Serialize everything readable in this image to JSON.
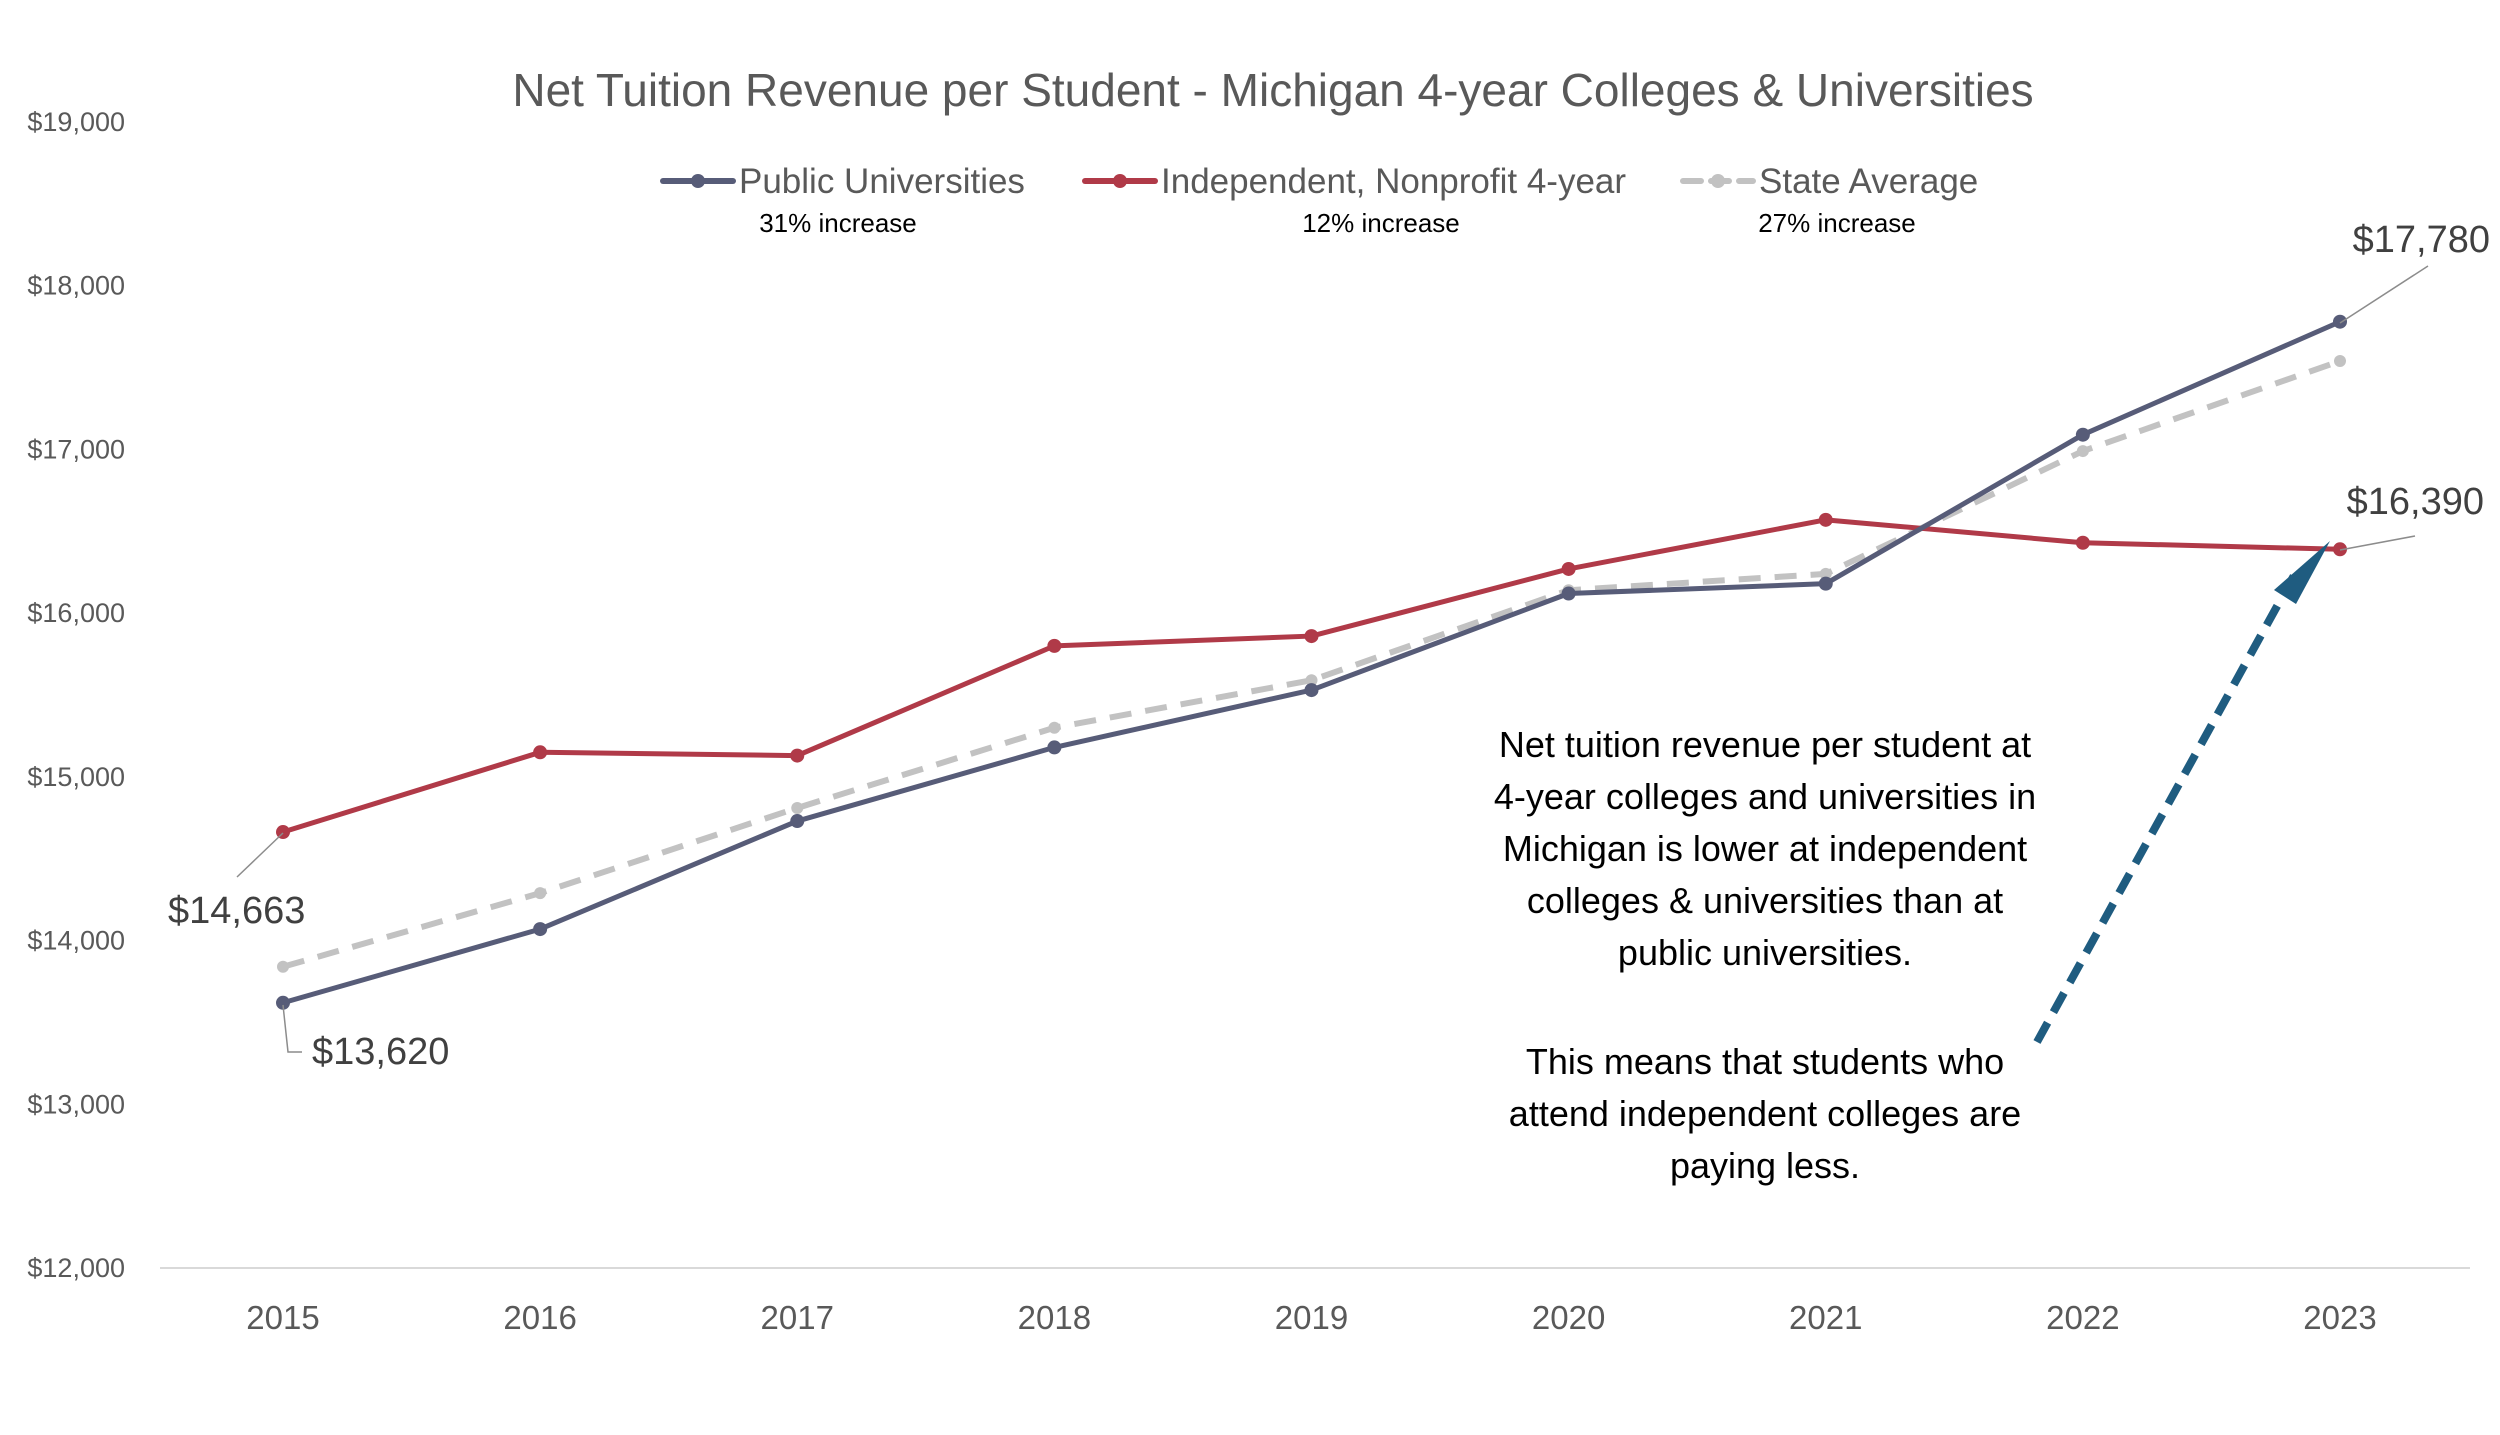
{
  "chart_data": {
    "type": "line",
    "title": "Net Tuition Revenue per Student - Michigan 4-year Colleges & Universities",
    "xlabel": "",
    "ylabel": "",
    "ylim": [
      12000,
      19000
    ],
    "yticks": [
      12000,
      13000,
      14000,
      15000,
      16000,
      17000,
      18000,
      19000
    ],
    "ytick_labels": [
      "$12,000",
      "$13,000",
      "$14,000",
      "$15,000",
      "$16,000",
      "$17,000",
      "$18,000",
      "$19,000"
    ],
    "categories": [
      "2015",
      "2016",
      "2017",
      "2018",
      "2019",
      "2020",
      "2021",
      "2022",
      "2023"
    ],
    "grid": false,
    "legend_position": "top",
    "series": [
      {
        "name": "Public Universities",
        "sublabel": "31% increase",
        "color": "#575C78",
        "dash": "solid",
        "values": [
          13620,
          14070,
          14730,
          15180,
          15530,
          16120,
          16180,
          17090,
          17780
        ]
      },
      {
        "name": "Independent, Nonprofit 4-year",
        "sublabel": "12% increase",
        "color": "#B03A48",
        "dash": "solid",
        "values": [
          14663,
          15150,
          15130,
          15800,
          15860,
          16270,
          16570,
          16430,
          16390
        ]
      },
      {
        "name": "State Average",
        "sublabel": "27% increase",
        "color": "#C2C2C2",
        "dash": "dashed",
        "values": [
          13840,
          14290,
          14810,
          15300,
          15590,
          16140,
          16240,
          16990,
          17540
        ]
      }
    ],
    "data_labels": [
      {
        "series": 1,
        "index": 0,
        "text": "$14,663"
      },
      {
        "series": 0,
        "index": 0,
        "text": "$13,620"
      },
      {
        "series": 0,
        "index": 8,
        "text": "$17,780"
      },
      {
        "series": 1,
        "index": 8,
        "text": "$16,390"
      }
    ],
    "annotation": {
      "paragraph1": [
        "Net tuition revenue per student at",
        "4-year colleges and universities in",
        "Michigan is lower at independent",
        "colleges & universities than at",
        "public universities."
      ],
      "paragraph2": [
        "This means that students who",
        "attend independent colleges are",
        "paying less."
      ],
      "arrow_color": "#1F5C80"
    }
  }
}
